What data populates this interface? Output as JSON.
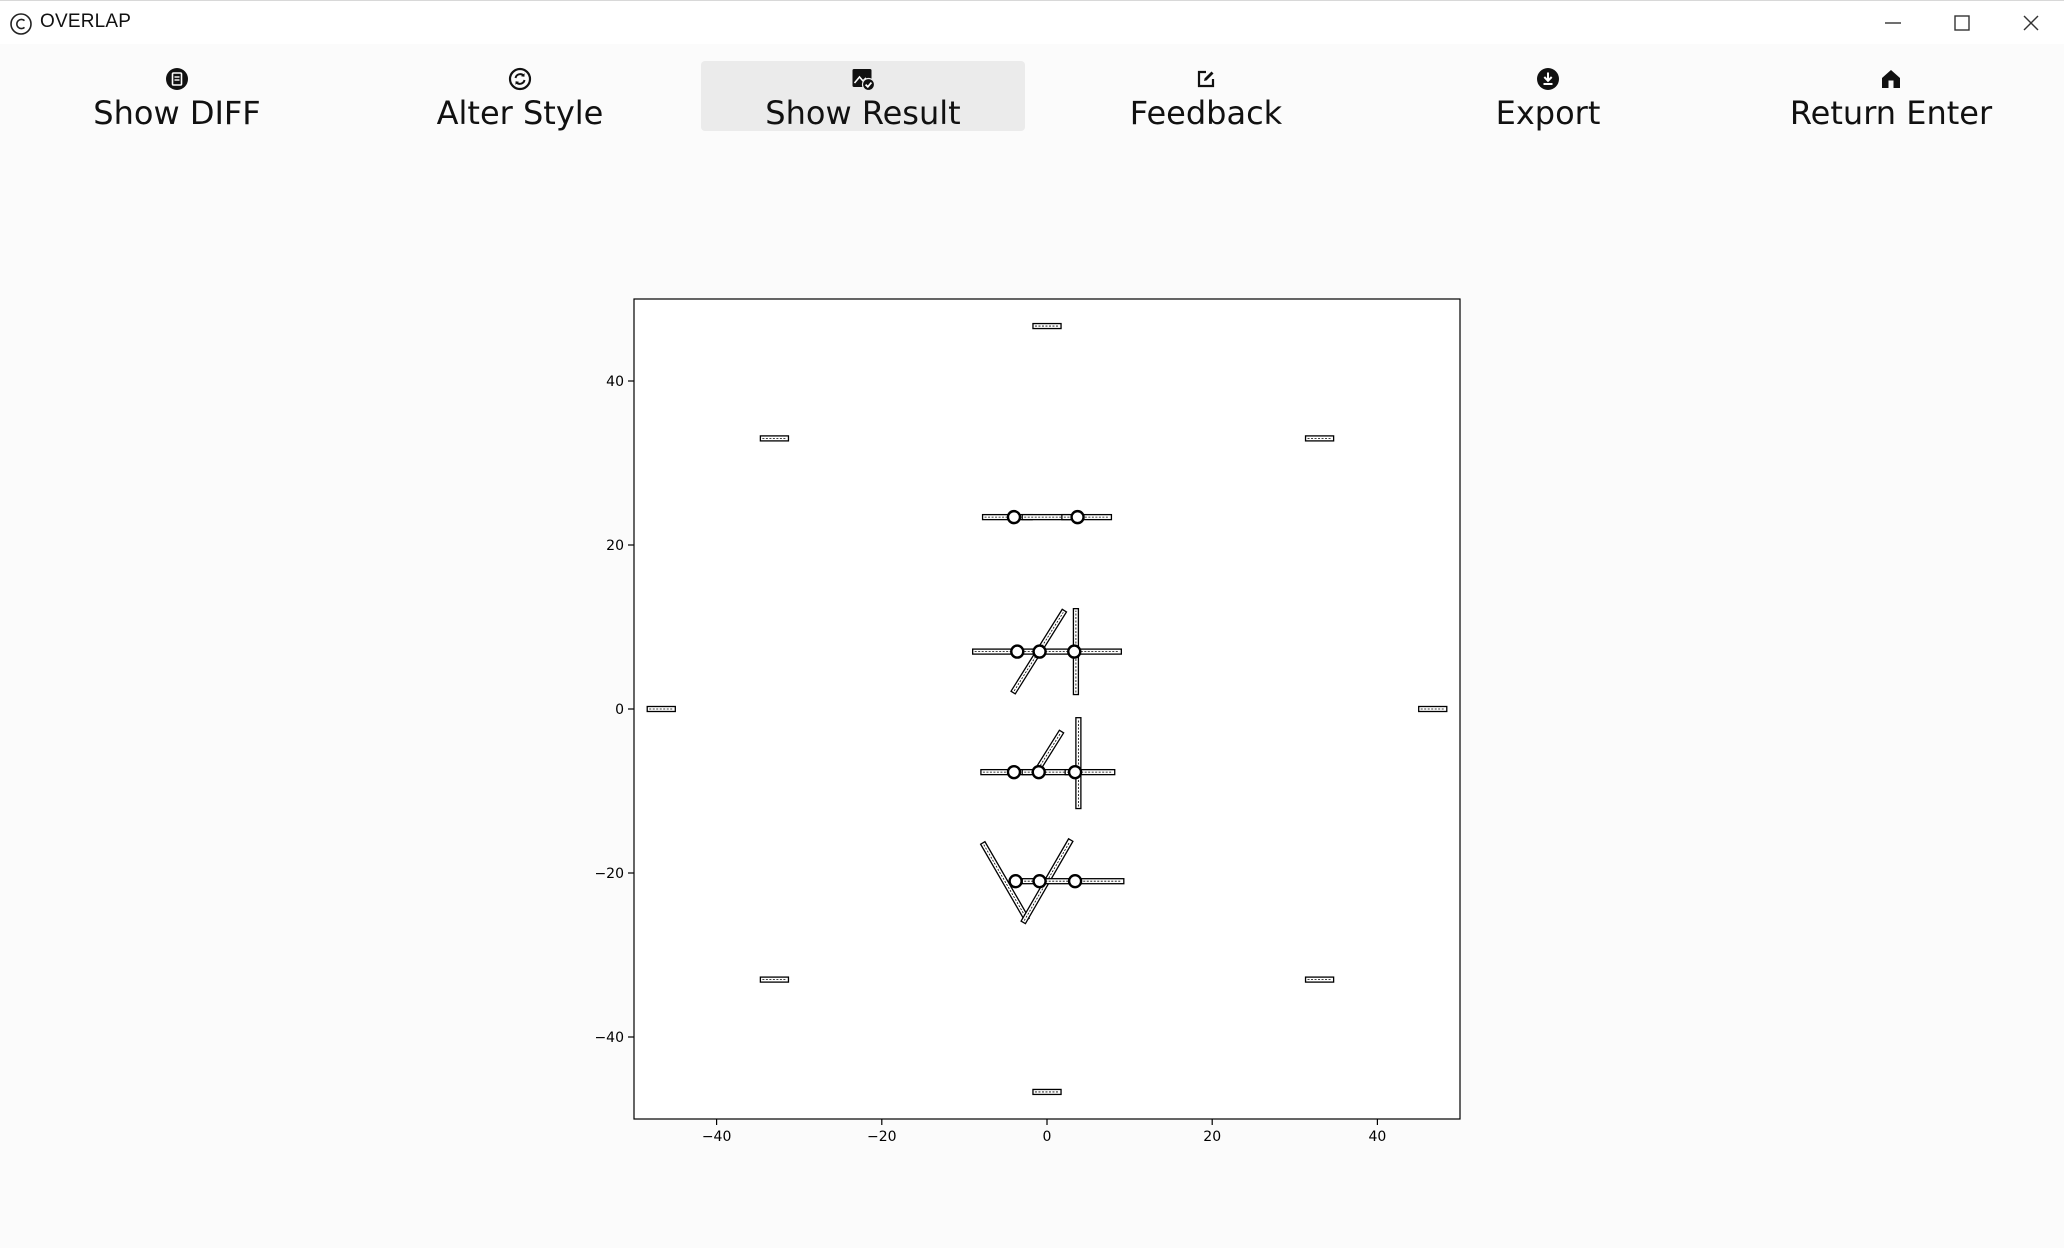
{
  "window": {
    "title": "OVERLAP"
  },
  "toolbar": {
    "items": [
      {
        "label": "Show DIFF",
        "icon": "doc-diff-icon"
      },
      {
        "label": "Alter Style",
        "icon": "refresh-icon"
      },
      {
        "label": "Show Result",
        "icon": "image-check-icon",
        "active": true
      },
      {
        "label": "Feedback",
        "icon": "edit-icon"
      },
      {
        "label": "Export",
        "icon": "download-icon"
      },
      {
        "label": "Return Enter",
        "icon": "home-icon"
      }
    ]
  },
  "chart_data": {
    "type": "scatter",
    "xlim": [
      -50,
      50
    ],
    "ylim": [
      -50,
      50
    ],
    "xticks": [
      "−40",
      "−20",
      "0",
      "20",
      "40"
    ],
    "yticks": [
      "−40",
      "−20",
      "0",
      "20",
      "40"
    ],
    "xtick_values": [
      -40,
      -20,
      0,
      20,
      40
    ],
    "ytick_values": [
      -40,
      -20,
      0,
      20,
      40
    ],
    "grid": false,
    "elements": [
      {
        "kind": "bar",
        "x": 0,
        "y": 46.7,
        "len": 3.4,
        "angle": 0
      },
      {
        "kind": "bar",
        "x": -33,
        "y": 33,
        "len": 3.4,
        "angle": 0
      },
      {
        "kind": "bar",
        "x": 33,
        "y": 33,
        "len": 3.4,
        "angle": 0
      },
      {
        "kind": "bar",
        "x": -46.7,
        "y": 0,
        "len": 3.4,
        "angle": 0
      },
      {
        "kind": "bar",
        "x": 46.7,
        "y": 0,
        "len": 3.4,
        "angle": 0
      },
      {
        "kind": "bar",
        "x": -33,
        "y": -33,
        "len": 3.4,
        "angle": 0
      },
      {
        "kind": "bar",
        "x": 33,
        "y": -33,
        "len": 3.4,
        "angle": 0
      },
      {
        "kind": "bar",
        "x": 0,
        "y": -46.7,
        "len": 3.4,
        "angle": 0
      },
      {
        "kind": "bar",
        "x": -4.8,
        "y": 23.4,
        "len": 6,
        "angle": 0
      },
      {
        "kind": "bar",
        "x": 0,
        "y": 23.4,
        "len": 6,
        "angle": 0
      },
      {
        "kind": "bar",
        "x": 4.8,
        "y": 23.4,
        "len": 6,
        "angle": 0
      },
      {
        "kind": "circle",
        "x": -4,
        "y": 23.4
      },
      {
        "kind": "circle",
        "x": 3.7,
        "y": 23.4
      },
      {
        "kind": "bar",
        "x": -6,
        "y": 7,
        "len": 6,
        "angle": 0
      },
      {
        "kind": "bar",
        "x": 0,
        "y": 7,
        "len": 6,
        "angle": 0
      },
      {
        "kind": "bar",
        "x": 6,
        "y": 7,
        "len": 6,
        "angle": 0
      },
      {
        "kind": "bar",
        "x": -1,
        "y": 7,
        "len": 11.7,
        "angle": 58
      },
      {
        "kind": "bar",
        "x": 3.5,
        "y": 7,
        "len": 10.4,
        "angle": 90
      },
      {
        "kind": "circle",
        "x": -3.6,
        "y": 7
      },
      {
        "kind": "circle",
        "x": -0.9,
        "y": 7
      },
      {
        "kind": "circle",
        "x": 3.3,
        "y": 7
      },
      {
        "kind": "bar",
        "x": -5,
        "y": -7.7,
        "len": 6,
        "angle": 0
      },
      {
        "kind": "bar",
        "x": 0,
        "y": -7.7,
        "len": 6,
        "angle": 0
      },
      {
        "kind": "bar",
        "x": 5.2,
        "y": -7.7,
        "len": 6,
        "angle": 0
      },
      {
        "kind": "bar",
        "x": 0.3,
        "y": -5.1,
        "len": 5.5,
        "angle": 58
      },
      {
        "kind": "bar",
        "x": 3.8,
        "y": -6.6,
        "len": 11,
        "angle": 90
      },
      {
        "kind": "circle",
        "x": -4,
        "y": -7.7
      },
      {
        "kind": "circle",
        "x": -1,
        "y": -7.7
      },
      {
        "kind": "circle",
        "x": 3.4,
        "y": -7.7
      },
      {
        "kind": "bar",
        "x": -5.1,
        "y": -21,
        "len": 10.7,
        "angle": -60
      },
      {
        "kind": "bar",
        "x": 0,
        "y": -21,
        "len": 11.5,
        "angle": 60
      },
      {
        "kind": "bar",
        "x": 0,
        "y": -21,
        "len": 6,
        "angle": 0
      },
      {
        "kind": "bar",
        "x": 6.3,
        "y": -21,
        "len": 6,
        "angle": 0
      },
      {
        "kind": "circle",
        "x": -3.8,
        "y": -21
      },
      {
        "kind": "circle",
        "x": -0.9,
        "y": -21
      },
      {
        "kind": "circle",
        "x": 3.4,
        "y": -21
      }
    ]
  }
}
